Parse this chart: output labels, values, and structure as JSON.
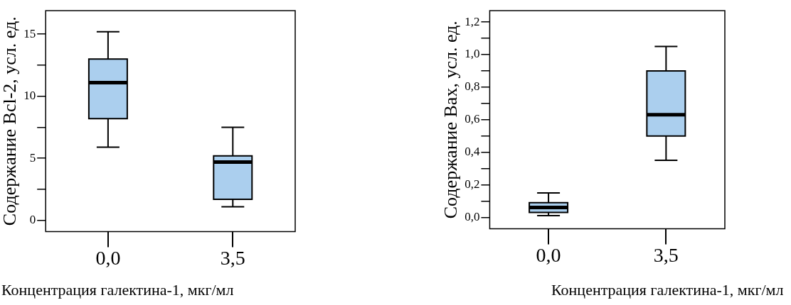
{
  "chart_data": [
    {
      "type": "box",
      "ylabel": "Содержание Bcl-2, усл. ед.",
      "xlabel": "Концентрация галектина-1, мкг/мл",
      "categories": [
        "0,0",
        "3,5"
      ],
      "series": [
        {
          "color": "#abcfee",
          "boxes": [
            {
              "low": 5.9,
              "q1": 8.2,
              "median": 11.1,
              "q3": 13.0,
              "high": 15.2
            },
            {
              "low": 1.1,
              "q1": 1.7,
              "median": 4.7,
              "q3": 5.2,
              "high": 7.5
            }
          ]
        }
      ],
      "ylim": [
        -0.9,
        16.9
      ],
      "yticks": [
        0,
        {
          "value": 2.5,
          "label": null
        },
        5,
        {
          "value": 7.5,
          "label": null
        },
        10,
        {
          "value": 12.5,
          "label": null
        },
        15
      ],
      "grid": false,
      "legend": false
    },
    {
      "type": "box",
      "ylabel": "Содержание Bax, усл. ед.",
      "xlabel": "Концентрация галектина-1, мкг/мл",
      "categories": [
        "0,0",
        "3,5"
      ],
      "series": [
        {
          "color": "#abcfee",
          "boxes": [
            {
              "low": 0.01,
              "q1": 0.03,
              "median": 0.06,
              "q3": 0.09,
              "high": 0.15
            },
            {
              "low": 0.35,
              "q1": 0.5,
              "median": 0.63,
              "q3": 0.9,
              "high": 1.05
            }
          ]
        }
      ],
      "ylim": [
        -0.07,
        1.27
      ],
      "yticks": [
        {
          "value": 0,
          "label": "0,0"
        },
        {
          "value": 0.1,
          "label": null
        },
        {
          "value": 0.2,
          "label": "0,2"
        },
        {
          "value": 0.3,
          "label": null
        },
        {
          "value": 0.4,
          "label": "0,4"
        },
        {
          "value": 0.5,
          "label": null
        },
        {
          "value": 0.6,
          "label": "0,6"
        },
        {
          "value": 0.7,
          "label": null
        },
        {
          "value": 0.8,
          "label": "0,8"
        },
        {
          "value": 0.9,
          "label": null
        },
        {
          "value": 1.0,
          "label": "1,0"
        },
        {
          "value": 1.1,
          "label": null
        },
        {
          "value": 1.2,
          "label": "1,2"
        }
      ],
      "grid": false,
      "legend": false
    }
  ]
}
